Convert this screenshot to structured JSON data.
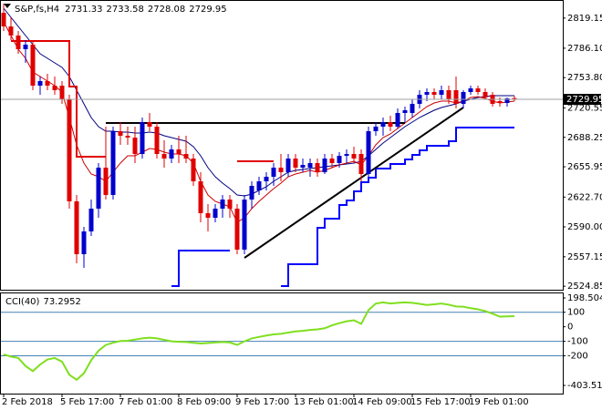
{
  "chart_data": [
    {
      "type": "candlestick",
      "title": "S&P,fs,H4",
      "categories": [
        "2 Feb 2018",
        null,
        null,
        null,
        null,
        null,
        null,
        null,
        "5 Feb 17:00",
        null,
        null,
        null,
        null,
        null,
        null,
        null,
        "7 Feb 01:00",
        null,
        null,
        null,
        null,
        null,
        null,
        null,
        "8 Feb 09:00",
        null,
        null,
        null,
        null,
        null,
        null,
        null,
        "9 Feb 17:00",
        null,
        null,
        null,
        null,
        null,
        null,
        null,
        "13 Feb 01:00",
        null,
        null,
        null,
        null,
        null,
        null,
        null,
        "14 Feb 09:00",
        null,
        null,
        null,
        null,
        null,
        null,
        null,
        "15 Feb 17:00",
        null,
        null,
        null,
        null,
        null,
        null,
        null,
        "19 Feb 01:00",
        null,
        null,
        null,
        null,
        null,
        null
      ],
      "open": [
        2825,
        2810,
        2800,
        2785,
        2790,
        2745,
        2750,
        2745,
        2745,
        2730,
        2618,
        2560,
        2585,
        2610,
        2655,
        2625,
        2695,
        2690,
        2688,
        2670,
        2705,
        2700,
        2670,
        2665,
        2675,
        2670,
        2665,
        2640,
        2605,
        2600,
        2610,
        2620,
        2610,
        2565,
        2620,
        2630,
        2640,
        2645,
        2655,
        2650,
        2665,
        2655,
        2655,
        2660,
        2650,
        2665,
        2660,
        2668,
        2670,
        2670,
        2648,
        2695,
        2700,
        2705,
        2700,
        2715,
        2715,
        2725,
        2735,
        2738,
        2735,
        2740,
        2740,
        2725,
        2738,
        2742,
        2738,
        2735,
        2728,
        2726,
        2731.33
      ],
      "high": [
        2835,
        2820,
        2805,
        2795,
        2795,
        2755,
        2758,
        2755,
        2750,
        2735,
        2625,
        2590,
        2620,
        2660,
        2700,
        2700,
        2705,
        2700,
        2700,
        2710,
        2715,
        2705,
        2685,
        2680,
        2690,
        2690,
        2670,
        2650,
        2615,
        2615,
        2625,
        2625,
        2615,
        2625,
        2640,
        2645,
        2650,
        2660,
        2670,
        2670,
        2670,
        2665,
        2665,
        2665,
        2670,
        2670,
        2672,
        2675,
        2678,
        2675,
        2700,
        2705,
        2710,
        2712,
        2720,
        2722,
        2730,
        2740,
        2742,
        2742,
        2745,
        2745,
        2755,
        2740,
        2745,
        2745,
        2742,
        2738,
        2732,
        2732,
        2733.58
      ],
      "low": [
        2805,
        2795,
        2780,
        2770,
        2740,
        2735,
        2740,
        2735,
        2725,
        2610,
        2550,
        2545,
        2580,
        2600,
        2620,
        2620,
        2680,
        2680,
        2660,
        2665,
        2695,
        2665,
        2655,
        2660,
        2660,
        2660,
        2635,
        2595,
        2585,
        2595,
        2600,
        2600,
        2560,
        2560,
        2610,
        2625,
        2630,
        2635,
        2640,
        2645,
        2650,
        2650,
        2645,
        2645,
        2648,
        2655,
        2655,
        2660,
        2660,
        2640,
        2645,
        2690,
        2690,
        2695,
        2698,
        2705,
        2710,
        2720,
        2728,
        2730,
        2730,
        2725,
        2720,
        2720,
        2735,
        2735,
        2730,
        2722,
        2722,
        2722,
        2728.08
      ],
      "close": [
        2810,
        2800,
        2785,
        2790,
        2745,
        2750,
        2745,
        2740,
        2730,
        2618,
        2560,
        2585,
        2610,
        2655,
        2625,
        2695,
        2690,
        2688,
        2670,
        2705,
        2700,
        2670,
        2665,
        2675,
        2670,
        2665,
        2640,
        2605,
        2600,
        2610,
        2620,
        2610,
        2565,
        2620,
        2635,
        2640,
        2645,
        2655,
        2650,
        2665,
        2655,
        2658,
        2660,
        2650,
        2665,
        2660,
        2668,
        2670,
        2665,
        2648,
        2695,
        2700,
        2705,
        2700,
        2715,
        2718,
        2725,
        2735,
        2738,
        2735,
        2740,
        2730,
        2725,
        2738,
        2742,
        2738,
        2732,
        2725,
        2726,
        2731,
        2729.95
      ],
      "up_color": "#0000cc",
      "down_color": "#e00000",
      "ylim": [
        2521,
        2838
      ],
      "yticks": [
        2819.15,
        {
          "value": 2786.1,
          "label": "2786.10"
        },
        {
          "value": 2753.8,
          "label": "2753.80"
        },
        2720.55,
        2688.25,
        2655.95,
        {
          "value": 2622.7,
          "label": "2622.70"
        },
        {
          "value": 2590,
          "label": "2590.00"
        },
        2557.15,
        2524.85
      ],
      "overlays": [
        {
          "color": "#000080",
          "step": false,
          "values": [
            2830,
            2820,
            2810,
            2800,
            2790,
            2780,
            2775,
            2770,
            2765,
            2755,
            2740,
            2725,
            2710,
            2700,
            2695,
            2695,
            2694,
            2694,
            2693,
            2693,
            2694,
            2693,
            2690,
            2688,
            2686,
            2684,
            2678,
            2668,
            2655,
            2645,
            2638,
            2632,
            2625,
            2624,
            2626,
            2630,
            2634,
            2640,
            2645,
            2650,
            2652,
            2653,
            2654,
            2655,
            2656,
            2657,
            2658,
            2659,
            2660,
            2662,
            2668,
            2675,
            2682,
            2688,
            2694,
            2700,
            2705,
            2710,
            2714,
            2718,
            2721,
            2723,
            2725,
            2728,
            2730,
            2732,
            2733,
            2734,
            2734,
            2734,
            2734
          ]
        },
        {
          "color": "#cc0000",
          "step": false,
          "values": [
            2815,
            2800,
            2785,
            2775,
            2760,
            2755,
            2750,
            2745,
            2738,
            2710,
            2680,
            2660,
            2648,
            2645,
            2640,
            2650,
            2660,
            2668,
            2668,
            2672,
            2676,
            2675,
            2672,
            2670,
            2670,
            2668,
            2660,
            2640,
            2625,
            2618,
            2615,
            2612,
            2595,
            2600,
            2610,
            2618,
            2625,
            2632,
            2638,
            2645,
            2648,
            2650,
            2652,
            2650,
            2652,
            2655,
            2658,
            2660,
            2662,
            2658,
            2668,
            2680,
            2688,
            2692,
            2698,
            2704,
            2710,
            2716,
            2722,
            2726,
            2728,
            2728,
            2726,
            2728,
            2732,
            2733,
            2731,
            2728,
            2726,
            2727,
            2728
          ]
        },
        {
          "color": "#0000ff",
          "step": true,
          "values": [
            null,
            null,
            null,
            null,
            null,
            null,
            null,
            null,
            null,
            null,
            null,
            null,
            null,
            null,
            null,
            null,
            null,
            null,
            null,
            null,
            null,
            null,
            null,
            2525,
            2564,
            2564,
            2564,
            2564,
            2564,
            2564,
            2564,
            2564,
            null,
            null,
            null,
            null,
            null,
            null,
            2525,
            2549,
            2549,
            2549,
            2549,
            2589,
            2599,
            2599,
            2614,
            2619,
            2629,
            2639,
            2644,
            2654,
            2654,
            2659,
            2659,
            2664,
            2669,
            2674,
            2679,
            2679,
            2679,
            2684,
            2699,
            2699,
            2699,
            2699,
            2699,
            2699,
            2699,
            2699,
            2699
          ]
        },
        {
          "color": "#e00000",
          "step": true,
          "values": [
            null,
            2794,
            2794,
            2794,
            2794,
            2794,
            2794,
            2794,
            2794,
            2744,
            2667,
            2667,
            2667,
            2667,
            2667,
            null,
            null,
            null,
            null,
            null,
            null,
            null,
            null,
            null,
            null,
            null,
            null,
            null,
            null,
            null,
            null,
            null,
            2662,
            2662,
            2662,
            2662,
            2662,
            2662,
            null,
            null,
            null,
            null,
            null,
            null,
            null,
            null,
            null,
            null,
            null,
            null,
            null,
            null,
            null,
            null,
            null,
            null,
            null,
            null,
            null,
            null,
            null,
            null,
            null,
            null,
            null,
            null,
            null,
            null,
            null,
            null,
            null
          ]
        }
      ],
      "trendlines": [
        {
          "color": "#000000",
          "x": [
            14,
            55
          ],
          "values": [
            2704,
            2704
          ]
        },
        {
          "color": "#000000",
          "x": [
            33,
            63
          ],
          "values": [
            2556,
            2721
          ]
        }
      ]
    },
    {
      "type": "line",
      "title": "CCI(40)",
      "color": "#7fdf1f",
      "values": [
        -190,
        -205,
        -215,
        -270,
        -305,
        -260,
        -225,
        -215,
        -240,
        -330,
        -365,
        -320,
        -230,
        -165,
        -125,
        -110,
        -98,
        -96,
        -88,
        -80,
        -75,
        -80,
        -90,
        -100,
        -103,
        -105,
        -110,
        -115,
        -112,
        -108,
        -105,
        -108,
        -125,
        -100,
        -80,
        -70,
        -60,
        -52,
        -48,
        -40,
        -32,
        -28,
        -22,
        -18,
        -10,
        10,
        25,
        38,
        45,
        20,
        115,
        160,
        168,
        160,
        165,
        168,
        165,
        158,
        150,
        155,
        160,
        152,
        140,
        138,
        128,
        120,
        108,
        90,
        70,
        72,
        73.2952
      ],
      "ylim": [
        -460,
        230
      ],
      "yticks": [
        198.5044,
        100,
        0,
        -100,
        -200,
        -403.5104
      ],
      "levels": [
        100,
        -100,
        -200
      ],
      "level_color": "#4682b4"
    }
  ]
}
